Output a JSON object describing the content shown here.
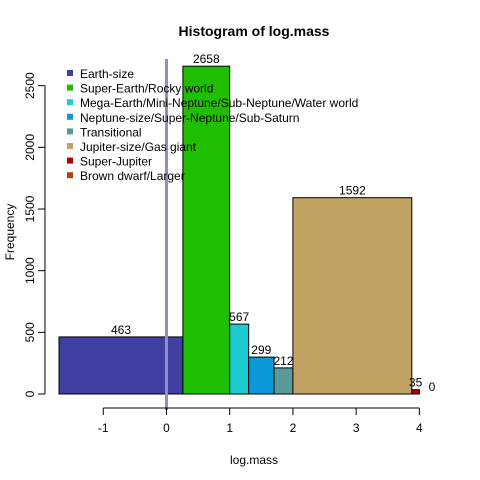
{
  "chart_data": {
    "type": "bar",
    "title": "Histogram of log.mass",
    "xlabel": "log.mass",
    "ylabel": "Frequency",
    "xlim": [
      -1.7,
      4.5
    ],
    "ylim": [
      0,
      2700
    ],
    "x_ticks": [
      "-1",
      "0",
      "1",
      "2",
      "3",
      "4"
    ],
    "x_tick_values": [
      -1,
      0,
      1,
      2,
      3,
      4
    ],
    "y_ticks": [
      "0",
      "500",
      "1000",
      "1500",
      "2000",
      "2500"
    ],
    "y_tick_values": [
      0,
      500,
      1000,
      1500,
      2000,
      2500
    ],
    "vline_x": 0,
    "vline_color": "#8e8ec2",
    "bins": [
      {
        "start": -1.7,
        "end": 0.26,
        "value": 463,
        "label": "463",
        "color": "#3f3fa1"
      },
      {
        "start": 0.26,
        "end": 1.0,
        "value": 2658,
        "label": "2658",
        "color": "#1fbf00"
      },
      {
        "start": 1.0,
        "end": 1.3,
        "value": 567,
        "label": "567",
        "color": "#1ecbd0"
      },
      {
        "start": 1.3,
        "end": 1.7,
        "value": 299,
        "label": "299",
        "color": "#0a98d8"
      },
      {
        "start": 1.7,
        "end": 2.0,
        "value": 212,
        "label": "212",
        "color": "#5a9a9a"
      },
      {
        "start": 2.0,
        "end": 3.88,
        "value": 1592,
        "label": "1592",
        "color": "#c3a363"
      },
      {
        "start": 3.88,
        "end": 4.0,
        "value": 35,
        "label": "35",
        "color": "#b30000"
      },
      {
        "start": 4.0,
        "end": 4.4,
        "value": 0,
        "label": "0",
        "color": "#a0460a"
      }
    ],
    "legend_position": "top-left",
    "legend": [
      {
        "name": "Earth-size",
        "color": "#3f3fa1"
      },
      {
        "name": "Super-Earth/Rocky world",
        "color": "#1fbf00"
      },
      {
        "name": "Mega-Earth/Mini-Neptune/Sub-Neptune/Water world",
        "color": "#1ecbd0"
      },
      {
        "name": "Neptune-size/Super-Neptune/Sub-Saturn",
        "color": "#0a98d8"
      },
      {
        "name": "Transitional",
        "color": "#5a9a9a"
      },
      {
        "name": "Jupiter-size/Gas giant",
        "color": "#c3a363"
      },
      {
        "name": "Super-Jupiter",
        "color": "#b30000"
      },
      {
        "name": "Brown dwarf/Larger",
        "color": "#a0460a"
      }
    ]
  }
}
